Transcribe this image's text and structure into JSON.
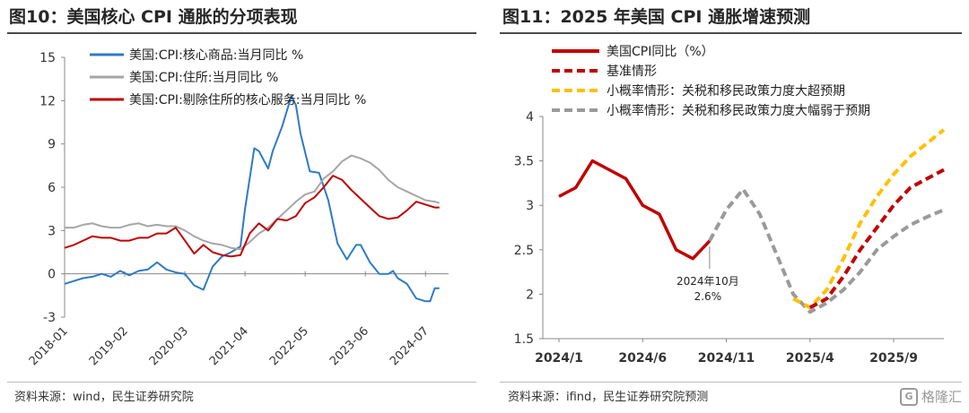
{
  "left": {
    "title": "图10：美国核心 CPI 通胀的分项表现",
    "source": "资料来源：wind，民生证券研究院"
  },
  "right": {
    "title": "图11：2025 年美国 CPI 通胀增速预测",
    "source": "资料来源：ifind，民生证券研究院预测",
    "watermark": "格隆汇",
    "annotation": [
      "2024年10月",
      "2.6%"
    ]
  },
  "colors": {
    "blue": "#2E7BC4",
    "gray": "#A6A6A6",
    "red": "#C00000",
    "yellow": "#FFC000",
    "darkgray": "#9A9A9A"
  },
  "chart_data": [
    {
      "type": "line",
      "x_tick_labels": [
        "2018-01",
        "2019-02",
        "2020-03",
        "2021-04",
        "2022-05",
        "2023-06",
        "2024-07"
      ],
      "x_range": [
        "2018-01",
        "2024-12"
      ],
      "ylim": [
        -3,
        15
      ],
      "y_ticks": [
        "-3",
        "0",
        "3",
        "6",
        "9",
        "12",
        "15"
      ],
      "legend_position": "top",
      "series": [
        {
          "name": "美国:CPI:核心商品:当月同比 %",
          "color": "#2E7BC4",
          "points": [
            [
              "2018-01",
              -0.7
            ],
            [
              "2018-03",
              -0.5
            ],
            [
              "2018-05",
              -0.3
            ],
            [
              "2018-07",
              -0.2
            ],
            [
              "2018-09",
              0.0
            ],
            [
              "2018-11",
              -0.2
            ],
            [
              "2019-01",
              0.2
            ],
            [
              "2019-03",
              -0.1
            ],
            [
              "2019-05",
              0.2
            ],
            [
              "2019-07",
              0.3
            ],
            [
              "2019-09",
              0.8
            ],
            [
              "2019-11",
              0.3
            ],
            [
              "2020-01",
              0.1
            ],
            [
              "2020-03",
              0.0
            ],
            [
              "2020-05",
              -0.8
            ],
            [
              "2020-07",
              -1.1
            ],
            [
              "2020-09",
              0.5
            ],
            [
              "2020-11",
              1.2
            ],
            [
              "2021-01",
              1.5
            ],
            [
              "2021-03",
              1.9
            ],
            [
              "2021-04",
              4.5
            ],
            [
              "2021-05",
              6.6
            ],
            [
              "2021-06",
              8.7
            ],
            [
              "2021-07",
              8.5
            ],
            [
              "2021-09",
              7.3
            ],
            [
              "2021-10",
              8.5
            ],
            [
              "2021-12",
              10.2
            ],
            [
              "2022-02",
              12.3
            ],
            [
              "2022-03",
              11.7
            ],
            [
              "2022-04",
              9.7
            ],
            [
              "2022-06",
              7.1
            ],
            [
              "2022-08",
              7.0
            ],
            [
              "2022-10",
              5.1
            ],
            [
              "2022-12",
              2.1
            ],
            [
              "2023-02",
              1.0
            ],
            [
              "2023-04",
              2.0
            ],
            [
              "2023-05",
              2.0
            ],
            [
              "2023-07",
              0.8
            ],
            [
              "2023-09",
              0.0
            ],
            [
              "2023-11",
              0.0
            ],
            [
              "2023-12",
              0.2
            ],
            [
              "2024-01",
              -0.3
            ],
            [
              "2024-03",
              -0.7
            ],
            [
              "2024-05",
              -1.7
            ],
            [
              "2024-07",
              -1.9
            ],
            [
              "2024-08",
              -1.9
            ],
            [
              "2024-09",
              -1.0
            ],
            [
              "2024-10",
              -1.0
            ]
          ]
        },
        {
          "name": "美国:CPI:住所:当月同比 %",
          "color": "#A6A6A6",
          "points": [
            [
              "2018-01",
              3.2
            ],
            [
              "2018-03",
              3.2
            ],
            [
              "2018-05",
              3.4
            ],
            [
              "2018-07",
              3.5
            ],
            [
              "2018-09",
              3.3
            ],
            [
              "2018-11",
              3.2
            ],
            [
              "2019-01",
              3.2
            ],
            [
              "2019-03",
              3.4
            ],
            [
              "2019-05",
              3.5
            ],
            [
              "2019-07",
              3.3
            ],
            [
              "2019-09",
              3.4
            ],
            [
              "2019-11",
              3.3
            ],
            [
              "2020-01",
              3.3
            ],
            [
              "2020-03",
              3.0
            ],
            [
              "2020-05",
              2.6
            ],
            [
              "2020-07",
              2.3
            ],
            [
              "2020-09",
              2.1
            ],
            [
              "2020-11",
              2.0
            ],
            [
              "2021-01",
              1.8
            ],
            [
              "2021-03",
              1.7
            ],
            [
              "2021-05",
              2.2
            ],
            [
              "2021-07",
              2.8
            ],
            [
              "2021-09",
              3.2
            ],
            [
              "2021-11",
              3.8
            ],
            [
              "2022-01",
              4.4
            ],
            [
              "2022-03",
              5.0
            ],
            [
              "2022-05",
              5.5
            ],
            [
              "2022-07",
              5.7
            ],
            [
              "2022-09",
              6.6
            ],
            [
              "2022-11",
              7.1
            ],
            [
              "2023-01",
              7.8
            ],
            [
              "2023-03",
              8.2
            ],
            [
              "2023-05",
              8.0
            ],
            [
              "2023-07",
              7.7
            ],
            [
              "2023-09",
              7.2
            ],
            [
              "2023-11",
              6.5
            ],
            [
              "2024-01",
              6.0
            ],
            [
              "2024-03",
              5.7
            ],
            [
              "2024-05",
              5.4
            ],
            [
              "2024-07",
              5.1
            ],
            [
              "2024-09",
              5.0
            ],
            [
              "2024-10",
              4.9
            ]
          ]
        },
        {
          "name": "美国:CPI:剔除住所的核心服务:当月同比 %",
          "color": "#C00000",
          "points": [
            [
              "2018-01",
              1.8
            ],
            [
              "2018-03",
              2.0
            ],
            [
              "2018-05",
              2.3
            ],
            [
              "2018-07",
              2.6
            ],
            [
              "2018-09",
              2.5
            ],
            [
              "2018-11",
              2.5
            ],
            [
              "2019-01",
              2.3
            ],
            [
              "2019-03",
              2.3
            ],
            [
              "2019-05",
              2.5
            ],
            [
              "2019-07",
              2.5
            ],
            [
              "2019-09",
              2.8
            ],
            [
              "2019-11",
              2.8
            ],
            [
              "2020-01",
              3.2
            ],
            [
              "2020-03",
              2.3
            ],
            [
              "2020-05",
              1.4
            ],
            [
              "2020-07",
              2.0
            ],
            [
              "2020-09",
              1.5
            ],
            [
              "2020-11",
              1.3
            ],
            [
              "2021-01",
              1.2
            ],
            [
              "2021-03",
              1.3
            ],
            [
              "2021-05",
              2.8
            ],
            [
              "2021-07",
              3.5
            ],
            [
              "2021-09",
              3.0
            ],
            [
              "2021-11",
              3.8
            ],
            [
              "2022-01",
              3.7
            ],
            [
              "2022-03",
              4.0
            ],
            [
              "2022-05",
              4.9
            ],
            [
              "2022-07",
              5.3
            ],
            [
              "2022-09",
              6.0
            ],
            [
              "2022-11",
              6.8
            ],
            [
              "2023-01",
              6.5
            ],
            [
              "2023-03",
              5.8
            ],
            [
              "2023-05",
              5.2
            ],
            [
              "2023-07",
              4.6
            ],
            [
              "2023-09",
              4.0
            ],
            [
              "2023-11",
              3.8
            ],
            [
              "2024-01",
              3.9
            ],
            [
              "2024-03",
              4.4
            ],
            [
              "2024-05",
              5.0
            ],
            [
              "2024-07",
              4.8
            ],
            [
              "2024-09",
              4.6
            ],
            [
              "2024-10",
              4.6
            ]
          ]
        }
      ]
    },
    {
      "type": "line",
      "x_tick_labels": [
        "2024/1",
        "2024/6",
        "2024/11",
        "2025/4",
        "2025/9"
      ],
      "x_range": [
        "2024-01",
        "2025-12"
      ],
      "ylim": [
        1.5,
        4
      ],
      "y_ticks": [
        "1.5",
        "2",
        "2.5",
        "3",
        "3.5",
        "4"
      ],
      "legend_position": "top",
      "series": [
        {
          "name": "美国CPI同比（%）",
          "color": "#C00000",
          "style": "solid",
          "points": [
            [
              "2024-01",
              3.1
            ],
            [
              "2024-02",
              3.2
            ],
            [
              "2024-03",
              3.5
            ],
            [
              "2024-04",
              3.4
            ],
            [
              "2024-05",
              3.3
            ],
            [
              "2024-06",
              3.0
            ],
            [
              "2024-07",
              2.9
            ],
            [
              "2024-08",
              2.5
            ],
            [
              "2024-09",
              2.4
            ],
            [
              "2024-10",
              2.6
            ]
          ]
        },
        {
          "name": "基准情形",
          "color": "#C00000",
          "style": "dashed",
          "points": [
            [
              "2025-04",
              1.85
            ],
            [
              "2025-05",
              1.95
            ],
            [
              "2025-06",
              2.2
            ],
            [
              "2025-07",
              2.5
            ],
            [
              "2025-08",
              2.75
            ],
            [
              "2025-09",
              3.0
            ],
            [
              "2025-10",
              3.2
            ],
            [
              "2025-11",
              3.3
            ],
            [
              "2025-12",
              3.4
            ]
          ]
        },
        {
          "name": "小概率情形：关税和移民政策力度大超预期",
          "color": "#FFC000",
          "style": "dashed",
          "points": [
            [
              "2025-03",
              1.95
            ],
            [
              "2025-04",
              1.85
            ],
            [
              "2025-05",
              2.05
            ],
            [
              "2025-06",
              2.4
            ],
            [
              "2025-07",
              2.8
            ],
            [
              "2025-08",
              3.1
            ],
            [
              "2025-09",
              3.35
            ],
            [
              "2025-10",
              3.55
            ],
            [
              "2025-11",
              3.7
            ],
            [
              "2025-12",
              3.85
            ]
          ]
        },
        {
          "name": "小概率情形：关税和移民政策力度大幅弱于预期",
          "color": "#9A9A9A",
          "style": "dashed",
          "points": [
            [
              "2024-10",
              2.6
            ],
            [
              "2024-11",
              2.95
            ],
            [
              "2024-12",
              3.18
            ],
            [
              "2025-01",
              2.9
            ],
            [
              "2025-02",
              2.45
            ],
            [
              "2025-03",
              2.0
            ],
            [
              "2025-04",
              1.8
            ],
            [
              "2025-05",
              1.9
            ],
            [
              "2025-06",
              2.05
            ],
            [
              "2025-07",
              2.25
            ],
            [
              "2025-08",
              2.5
            ],
            [
              "2025-09",
              2.65
            ],
            [
              "2025-10",
              2.78
            ],
            [
              "2025-11",
              2.87
            ],
            [
              "2025-12",
              2.95
            ]
          ]
        }
      ]
    }
  ]
}
